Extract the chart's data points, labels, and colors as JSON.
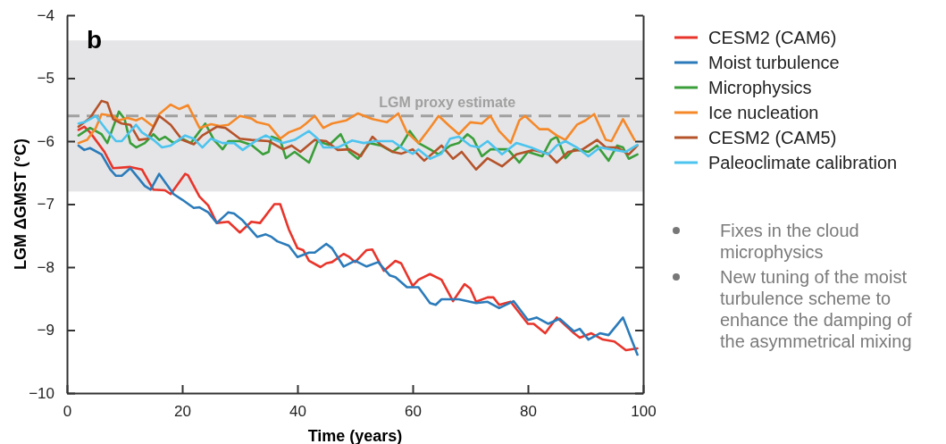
{
  "chart_data": {
    "type": "line",
    "xlabel": "Time (years)",
    "ylabel": "LGM ΔGMST (°C)",
    "xlim": [
      0,
      100
    ],
    "xticks": [
      0,
      20,
      40,
      60,
      80,
      100
    ],
    "ylim": [
      -10,
      -4
    ],
    "yticks": [
      -10,
      -9,
      -8,
      -7,
      -6,
      -5,
      -4
    ],
    "legend": "right",
    "line_style": "solid",
    "marker": "none",
    "grid": false,
    "bands": [
      {
        "axis": "y",
        "from": -6.8,
        "to": -4.4,
        "color": "#e5e5e7"
      }
    ],
    "ref_lines": [
      {
        "axis": "y",
        "value": -5.6,
        "label": "LGM proxy estimate",
        "color": "#a0a0a0",
        "line_style": "dashed"
      }
    ],
    "annotations": [
      "b",
      "Fixes in the cloud microphysics",
      "New tuning of the moist turbulence scheme to enhance the damping of the asymmetrical mixing"
    ],
    "series": [
      {
        "name": "CESM2 (CAM6)",
        "color": "#e8352b",
        "x": [
          2,
          3,
          4,
          6.5,
          8,
          11,
          13,
          15,
          17,
          18,
          20.5,
          21,
          23,
          24.5,
          26,
          28,
          30,
          32,
          33.5,
          36,
          37,
          38.5,
          40,
          41,
          42,
          44,
          45,
          46,
          48,
          49,
          50,
          52,
          53,
          55,
          57,
          58,
          60,
          61,
          63,
          65,
          67,
          69,
          70,
          71,
          73,
          74,
          75,
          77,
          80,
          81,
          83,
          85,
          88,
          89,
          91,
          93,
          95,
          97,
          99
        ],
        "values": [
          -5.82,
          -5.77,
          -5.86,
          -6.17,
          -6.43,
          -6.41,
          -6.45,
          -6.77,
          -6.78,
          -6.84,
          -6.52,
          -6.54,
          -6.88,
          -7.02,
          -7.3,
          -7.28,
          -7.45,
          -7.28,
          -7.3,
          -7.0,
          -7.0,
          -7.4,
          -7.7,
          -7.73,
          -7.9,
          -8.0,
          -7.94,
          -7.92,
          -7.79,
          -7.84,
          -7.92,
          -7.73,
          -7.72,
          -8.06,
          -7.9,
          -7.94,
          -8.3,
          -8.2,
          -8.11,
          -8.2,
          -8.54,
          -8.27,
          -8.34,
          -8.55,
          -8.48,
          -8.48,
          -8.6,
          -8.55,
          -8.9,
          -8.9,
          -9.05,
          -8.8,
          -9.05,
          -9.12,
          -9.05,
          -9.15,
          -9.18,
          -9.32,
          -9.29
        ]
      },
      {
        "name": "Moist turbulence",
        "color": "#2b7bba",
        "x": [
          2,
          3,
          4,
          6,
          7.5,
          8.5,
          9.5,
          11,
          13.5,
          14.5,
          16,
          18.5,
          20,
          22,
          23,
          24.5,
          26,
          28,
          29,
          30.5,
          33,
          34.5,
          35.5,
          36.5,
          38.5,
          40,
          42,
          43,
          45,
          46,
          48,
          50,
          52,
          54,
          56,
          57,
          59,
          61,
          63,
          64,
          65,
          68,
          71,
          73,
          75,
          77.5,
          80,
          81.5,
          83.5,
          85.5,
          88,
          89,
          90.5,
          92.5,
          94,
          96.5,
          99
        ],
        "values": [
          -6.07,
          -6.14,
          -6.11,
          -6.21,
          -6.45,
          -6.55,
          -6.55,
          -6.43,
          -6.71,
          -6.77,
          -6.52,
          -6.84,
          -6.93,
          -7.06,
          -7.05,
          -7.13,
          -7.3,
          -7.13,
          -7.15,
          -7.26,
          -7.52,
          -7.48,
          -7.52,
          -7.59,
          -7.66,
          -7.84,
          -7.77,
          -7.77,
          -7.63,
          -7.7,
          -7.99,
          -7.9,
          -7.99,
          -7.92,
          -8.13,
          -8.16,
          -8.32,
          -8.32,
          -8.57,
          -8.6,
          -8.51,
          -8.51,
          -8.57,
          -8.55,
          -8.65,
          -8.54,
          -8.84,
          -8.8,
          -8.9,
          -8.82,
          -9.02,
          -8.98,
          -9.15,
          -9.05,
          -9.08,
          -8.8,
          -9.39
        ]
      },
      {
        "name": "Microphysics",
        "color": "#3a9e3a",
        "x": [
          2,
          4,
          6,
          7,
          9,
          10,
          11,
          12,
          13.5,
          15,
          16,
          17,
          18.5,
          20,
          21.5,
          24,
          25.5,
          27,
          28,
          30,
          32,
          34,
          35,
          35.5,
          37,
          38,
          39.5,
          42,
          43.5,
          45.5,
          47.5,
          49,
          50.5,
          52.5,
          54.5,
          56.5,
          58,
          59.5,
          61,
          63,
          64.5,
          66.5,
          68,
          69.5,
          70.5,
          72,
          73.5,
          76.5,
          78.5,
          80,
          82.5,
          84,
          85,
          86.5,
          88,
          90.5,
          92,
          94,
          95.5,
          96.5,
          97.5,
          99
        ],
        "values": [
          -5.91,
          -5.79,
          -5.89,
          -6.03,
          -5.53,
          -5.65,
          -6.03,
          -6.1,
          -6.03,
          -5.89,
          -5.98,
          -5.93,
          -6.03,
          -5.96,
          -6.03,
          -5.72,
          -5.98,
          -6.13,
          -6.0,
          -6.0,
          -6.06,
          -6.21,
          -6.17,
          -5.93,
          -5.98,
          -6.27,
          -6.17,
          -6.34,
          -6.0,
          -6.06,
          -5.89,
          -6.17,
          -6.28,
          -6.03,
          -6.07,
          -6.17,
          -6.07,
          -5.84,
          -6.03,
          -6.13,
          -6.21,
          -6.07,
          -6.03,
          -5.89,
          -5.96,
          -6.24,
          -6.13,
          -6.13,
          -6.34,
          -6.17,
          -6.24,
          -5.98,
          -5.93,
          -6.27,
          -6.13,
          -6.17,
          -6.07,
          -6.31,
          -6.07,
          -6.1,
          -6.28,
          -6.21
        ]
      },
      {
        "name": "Ice nucleation",
        "color": "#f5892a",
        "x": [
          2,
          3.5,
          5,
          6,
          8,
          9,
          10.5,
          12,
          13,
          15,
          16,
          18,
          19.5,
          21,
          23,
          25,
          26.5,
          28,
          30,
          32,
          33,
          35,
          37,
          38.5,
          40.5,
          41.5,
          43,
          44.5,
          46,
          48.5,
          50.5,
          53,
          55.5,
          57.5,
          59,
          61,
          63,
          64.5,
          66.5,
          68,
          70,
          72,
          73.5,
          75,
          77,
          78.5,
          79.5,
          82,
          83.5,
          85,
          86.5,
          88.5,
          90,
          91.5,
          93.5,
          94.5,
          96.5,
          98.5
        ],
        "values": [
          -6.03,
          -5.98,
          -5.79,
          -5.57,
          -5.6,
          -5.67,
          -5.63,
          -5.67,
          -5.63,
          -5.77,
          -5.57,
          -5.42,
          -5.49,
          -5.43,
          -5.79,
          -5.73,
          -5.76,
          -5.74,
          -5.6,
          -5.64,
          -5.7,
          -5.74,
          -5.96,
          -5.86,
          -5.79,
          -5.72,
          -5.6,
          -5.79,
          -5.72,
          -5.67,
          -5.56,
          -5.65,
          -5.7,
          -5.56,
          -5.86,
          -6.03,
          -5.79,
          -5.6,
          -5.77,
          -5.89,
          -5.7,
          -5.72,
          -5.6,
          -5.84,
          -6.03,
          -5.67,
          -5.6,
          -5.81,
          -5.81,
          -5.91,
          -5.98,
          -5.74,
          -5.67,
          -5.57,
          -5.98,
          -6.0,
          -5.65,
          -5.98
        ]
      },
      {
        "name": "CESM2 (CAM5)",
        "color": "#b5532a",
        "x": [
          2,
          4,
          6,
          7,
          8,
          9.5,
          11,
          12.5,
          14,
          16,
          18,
          20,
          22,
          23.5,
          26,
          27.5,
          30,
          32,
          35,
          37.5,
          39,
          40.5,
          43,
          45,
          47,
          49,
          51,
          53,
          54.5,
          56.5,
          58,
          60,
          62,
          65,
          67,
          68.5,
          71,
          73,
          75.5,
          78,
          81,
          83.5,
          85,
          87,
          89.5,
          92,
          93.5,
          95.5,
          97.5,
          99
        ],
        "values": [
          -5.77,
          -5.63,
          -5.36,
          -5.39,
          -5.65,
          -5.72,
          -5.74,
          -5.98,
          -5.96,
          -5.6,
          -5.74,
          -5.98,
          -6.05,
          -5.91,
          -5.77,
          -5.79,
          -5.96,
          -5.98,
          -6.0,
          -6.13,
          -6.07,
          -6.17,
          -5.98,
          -6.0,
          -6.14,
          -6.13,
          -6.24,
          -5.93,
          -6.06,
          -6.17,
          -6.2,
          -6.13,
          -6.31,
          -6.07,
          -6.28,
          -6.17,
          -6.45,
          -6.27,
          -6.4,
          -6.21,
          -6.14,
          -6.2,
          -6.34,
          -6.17,
          -6.13,
          -5.98,
          -6.1,
          -6.1,
          -6.21,
          -6.07
        ]
      },
      {
        "name": "Paleoclimate calibration",
        "color": "#4dc4ee",
        "x": [
          2,
          3,
          5,
          7,
          8.5,
          9.5,
          12,
          13,
          15,
          16.5,
          18,
          20.5,
          22,
          23.5,
          25,
          27,
          29,
          30.5,
          33,
          34.5,
          36,
          37.5,
          39.5,
          42,
          43.5,
          44.5,
          47,
          49.5,
          51.5,
          53.5,
          56.5,
          58.5,
          60,
          61,
          63,
          65,
          66.5,
          68,
          70,
          71.5,
          73,
          75.5,
          78,
          80.5,
          83.5,
          85,
          86.5,
          88.5,
          90.5,
          92.5,
          95,
          97,
          99
        ],
        "values": [
          -5.72,
          -5.7,
          -5.6,
          -5.84,
          -6.0,
          -6.0,
          -5.74,
          -5.86,
          -5.98,
          -6.1,
          -6.07,
          -5.91,
          -5.96,
          -6.1,
          -5.96,
          -6.03,
          -6.03,
          -6.14,
          -5.98,
          -5.91,
          -5.98,
          -6.03,
          -5.98,
          -5.84,
          -5.96,
          -6.1,
          -6.1,
          -5.99,
          -6.03,
          -6.0,
          -6.0,
          -6.13,
          -6.2,
          -6.13,
          -6.28,
          -6.2,
          -5.96,
          -5.93,
          -6.07,
          -6.1,
          -6.0,
          -6.21,
          -6.03,
          -6.1,
          -6.21,
          -6.07,
          -6.0,
          -6.1,
          -6.24,
          -6.1,
          -6.14,
          -6.17,
          -6.06
        ]
      }
    ]
  }
}
